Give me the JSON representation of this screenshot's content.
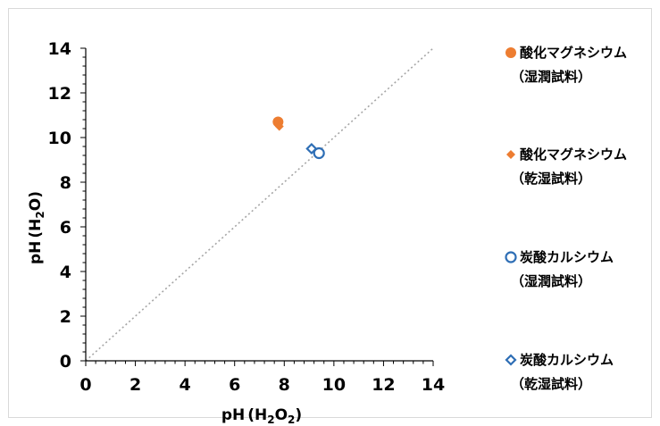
{
  "chart_data": {
    "type": "scatter",
    "xlabel": {
      "main": "pH",
      "open": "(H",
      "sub1": "2",
      "mid": "O",
      "sub2": "2",
      "close": ")"
    },
    "ylabel": {
      "main": "pH",
      "open": "(H",
      "sub1": "2",
      "close": "O)"
    },
    "xlim": [
      0,
      14
    ],
    "ylim": [
      0,
      14
    ],
    "major_ticks": [
      0,
      2,
      4,
      6,
      8,
      10,
      12,
      14
    ],
    "minor_tick_step": 0.4,
    "grid": false,
    "reference_line": {
      "style": "dotted",
      "color": "#a6a6a6",
      "from": [
        0,
        0
      ],
      "to": [
        14,
        14
      ]
    },
    "legend": {
      "placement": "right"
    },
    "series": [
      {
        "name_line1": "酸化マグネシウム",
        "name_line2": "（湿潤試料）",
        "marker": "circle-filled",
        "color": "#ed7d31",
        "points": [
          [
            7.75,
            10.7
          ]
        ]
      },
      {
        "name_line1": "酸化マグネシウム",
        "name_line2": "（乾湿試料）",
        "marker": "diamond-filled",
        "color": "#ed7d31",
        "points": [
          [
            7.8,
            10.5
          ]
        ]
      },
      {
        "name_line1": "炭酸カルシウム",
        "name_line2": "（湿潤試料）",
        "marker": "circle-open",
        "color": "#2e6eb5",
        "points": [
          [
            9.4,
            9.3
          ]
        ]
      },
      {
        "name_line1": "炭酸カルシウム",
        "name_line2": "（乾湿試料）",
        "marker": "diamond-open",
        "color": "#2e6eb5",
        "points": [
          [
            9.1,
            9.5
          ]
        ]
      }
    ]
  }
}
